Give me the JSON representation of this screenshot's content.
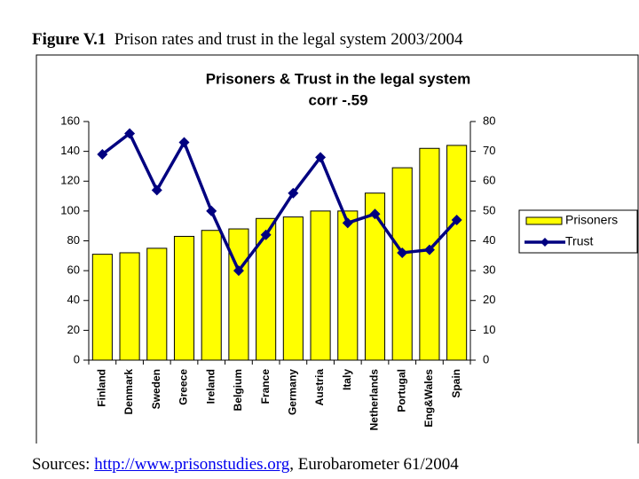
{
  "figure_label": "Figure V.1",
  "caption": "Prison rates and trust in the legal system 2003/2004",
  "sources": {
    "prefix": "Sources:",
    "link": "http://www.prisonstudies.org",
    "suffix": ", Eurobarometer 61/2004"
  },
  "chart_data": {
    "type": "bar",
    "title": "Prisoners & Trust in the legal system",
    "subtitle": "corr -.59",
    "categories": [
      "Finland",
      "Denmark",
      "Sweden",
      "Greece",
      "Ireland",
      "Belgium",
      "France",
      "Germany",
      "Austria",
      "Italy",
      "Netherlands",
      "Portugal",
      "Eng&Wales",
      "Spain"
    ],
    "series": [
      {
        "name": "Prisoners",
        "type": "bar",
        "color": "#ffff00",
        "values": [
          71,
          72,
          75,
          83,
          87,
          88,
          95,
          96,
          100,
          100,
          112,
          129,
          142,
          144
        ]
      },
      {
        "name": "Trust",
        "type": "line",
        "axis": "y2",
        "color": "#000080",
        "values": [
          69,
          76,
          57,
          73,
          50,
          30,
          42,
          56,
          68,
          46,
          49,
          36,
          37,
          47
        ]
      }
    ],
    "ylim": [
      0,
      160
    ],
    "yticks": [
      0,
      20,
      40,
      60,
      80,
      100,
      120,
      140,
      160
    ],
    "y2lim": [
      0,
      80
    ],
    "y2ticks": [
      0,
      10,
      20,
      30,
      40,
      50,
      60,
      70,
      80
    ],
    "grid": false,
    "legend": "right"
  }
}
